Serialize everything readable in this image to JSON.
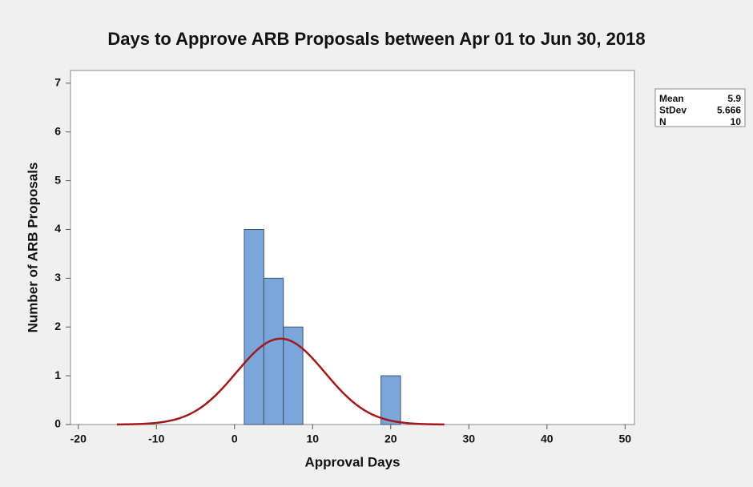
{
  "chart_data": {
    "type": "histogram",
    "title": "Days to Approve ARB Proposals between Apr 01 to Jun 30, 2018",
    "x_label": "Approval Days",
    "y_label": "Number of ARB Proposals",
    "bins": [
      1.25,
      3.75,
      6.25,
      8.75,
      11.25,
      13.75,
      16.25,
      18.75,
      21.25
    ],
    "counts": [
      4,
      3,
      2,
      0,
      0,
      0,
      0,
      1
    ],
    "color": "#7aa6dc",
    "fit_color": "#a01a1a",
    "xlim": [
      -21,
      51.2
    ],
    "ylim": [
      0,
      7.26
    ],
    "xticks": [
      -20,
      -10,
      0,
      10,
      20,
      30,
      40,
      50
    ],
    "yticks": [
      0,
      1,
      2,
      3,
      4,
      5,
      6,
      7
    ],
    "stats": [
      {
        "label": "Mean",
        "value": 5.9
      },
      {
        "label": "StDev",
        "value": 5.666
      },
      {
        "label": "N",
        "value": 10
      }
    ]
  }
}
